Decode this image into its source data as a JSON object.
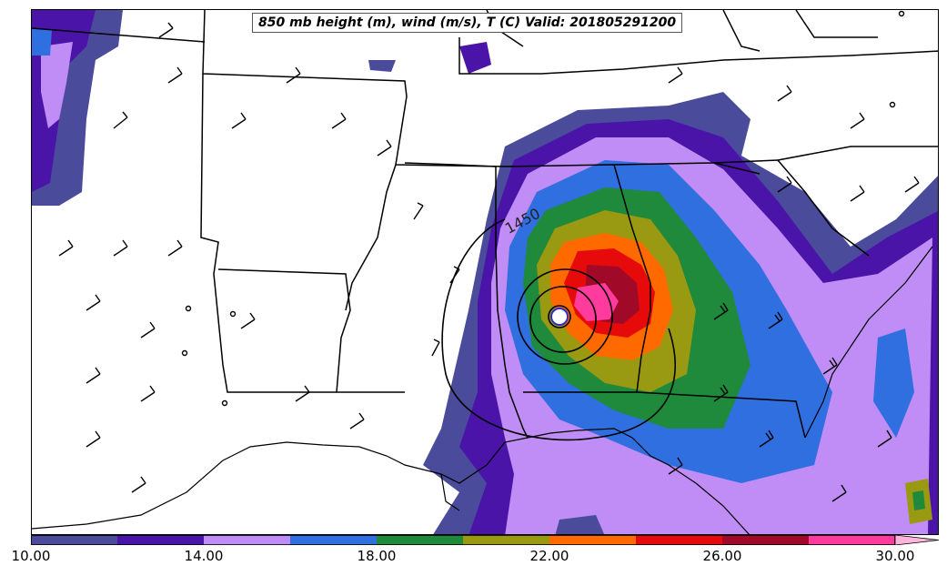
{
  "title": "850 mb height (m), wind (m/s), T (C) Valid: 201805291200",
  "contour_label": "1450",
  "colorbar": {
    "labels": [
      "10.00",
      "14.00",
      "18.00",
      "22.00",
      "26.00",
      "30.00"
    ],
    "colors": [
      "#4b4b9c",
      "#4a14a8",
      "#c08cf5",
      "#2f6fe0",
      "#1f8a3c",
      "#9a9a12",
      "#ff6a00",
      "#e60a0a",
      "#a00a28",
      "#ff3c9e",
      "#ffb4dc"
    ]
  },
  "map": {
    "region": "Southeastern United States",
    "overlays": [
      "state-borders",
      "coastlines",
      "850mb-height-contours",
      "wind-barbs",
      "temperature-fill"
    ]
  }
}
